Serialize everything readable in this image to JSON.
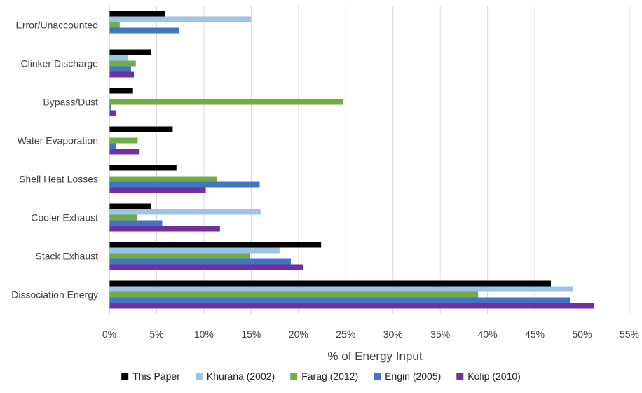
{
  "chart_data": {
    "type": "bar",
    "orientation": "horizontal",
    "categories": [
      "Error/Unaccounted",
      "Clinker Discharge",
      "Bypass/Dust",
      "Water Evaporation",
      "Shell Heat Losses",
      "Cooler Exhaust",
      "Stack Exhaust",
      "Dissociation Energy"
    ],
    "series": [
      {
        "name": "This Paper",
        "color": "#000000",
        "values": [
          5.9,
          4.4,
          2.5,
          6.7,
          7.1,
          4.4,
          22.4,
          46.7
        ]
      },
      {
        "name": "Khurana (2002)",
        "color": "#9DC3E6",
        "values": [
          15.0,
          2.0,
          0.0,
          0.0,
          0.0,
          16.0,
          18.0,
          49.0
        ]
      },
      {
        "name": "Farag (2012)",
        "color": "#70AD47",
        "values": [
          1.1,
          2.8,
          24.7,
          3.0,
          11.4,
          2.9,
          14.9,
          39.0
        ]
      },
      {
        "name": "Engin (2005)",
        "color": "#4472C4",
        "values": [
          7.4,
          2.3,
          0.2,
          0.7,
          15.9,
          5.6,
          19.2,
          48.7
        ]
      },
      {
        "name": "Kolip (2010)",
        "color": "#7030A0",
        "values": [
          0.0,
          2.6,
          0.7,
          3.2,
          10.2,
          11.7,
          20.5,
          51.3
        ]
      }
    ],
    "title": "",
    "xlabel": "% of Energy Input",
    "ylabel": "",
    "xlim": [
      0,
      55
    ],
    "xticks": [
      "0%",
      "5%",
      "10%",
      "15%",
      "20%",
      "25%",
      "30%",
      "35%",
      "40%",
      "45%",
      "50%",
      "55%"
    ],
    "grid": "vertical",
    "legend_position": "bottom"
  }
}
